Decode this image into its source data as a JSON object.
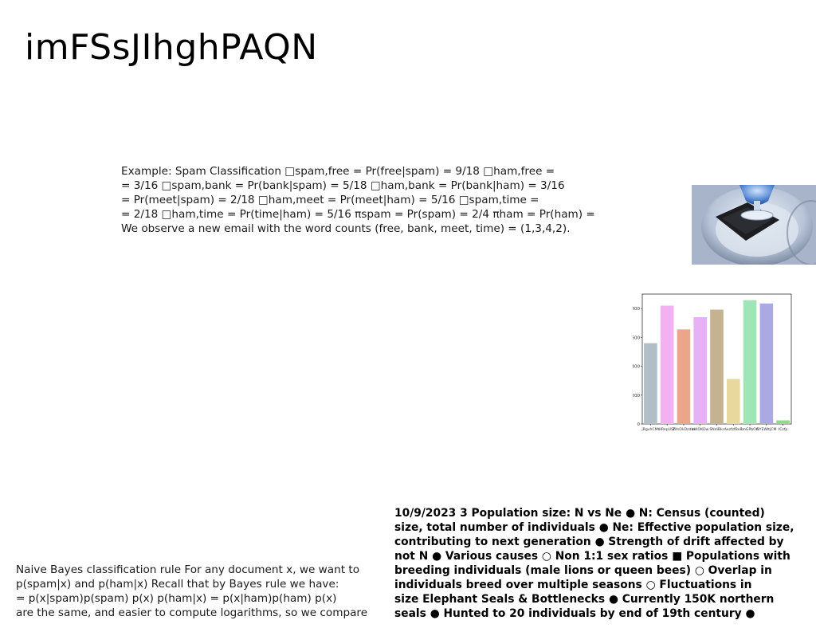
{
  "page": {
    "title": "imFSsJIhghPAQN"
  },
  "spam_example": {
    "lines": [
      "Example: Spam Classification □spam,free = Pr(free|spam) = 9/18 □ham,free =",
      "= 3/16 □spam,bank = Pr(bank|spam) = 5/18 □ham,bank = Pr(bank|ham) = 3/16",
      "= Pr(meet|spam) = 2/18 □ham,meet = Pr(meet|ham) = 5/16 □spam,time =",
      "= 2/18 □ham,time = Pr(time|ham) = 5/16 πspam = Pr(spam) = 2/4 πham = Pr(ham) =",
      "We observe a new email with the word counts (free, bank, meet, time) = (1,3,4,2)."
    ]
  },
  "bayes_rule": {
    "lines": [
      "Naive Bayes classification rule For any document x, we want to",
      "p(spam|x) and p(ham|x) Recall that by Bayes rule we have:",
      "= p(x|spam)p(spam) p(x) p(ham|x) = p(x|ham)p(ham) p(x)",
      "are the same, and easier to compute logarithms, so we compare"
    ]
  },
  "population": {
    "lines": [
      "10/9/2023 3 Population size: N vs Ne ● N: Census (counted)",
      "size, total number of individuals ● Ne: Effective population size,",
      "contributing to next generation ● Strength of drift affected by",
      "not N ● Various causes ○ Non 1:1 sex ratios ■ Populations with",
      "breeding individuals (male lions or queen bees) ○ Overlap in",
      "individuals breed over multiple seasons ○ Fluctuations in",
      "size Elephant Seals & Bottlenecks ● Currently 150K northern",
      "seals ● Hunted to 20 individuals by end of 19th century ●"
    ]
  },
  "photo": {
    "icon": "glass-on-coaster-photo"
  },
  "chart_data": {
    "type": "bar",
    "categories": [
      "jRgvhCMt",
      "HRepUSh",
      "ZYsOkDzdm",
      "bWOKDw",
      "SNdiBkr",
      "AezfzfBeR",
      "ImGPbOC",
      "NYEWltjCM",
      "ICzfp"
    ],
    "values": [
      560,
      820,
      655,
      740,
      792,
      312,
      858,
      835,
      25
    ],
    "colors": [
      "#b2bec6",
      "#f2b1f0",
      "#eba58a",
      "#e6b1f5",
      "#c5b28f",
      "#e9d89d",
      "#9fe5b8",
      "#aaa9e3",
      "#90d98a"
    ],
    "yticks": [
      0,
      200,
      400,
      600,
      800
    ],
    "ylim": [
      0,
      900
    ],
    "title": "",
    "xlabel": "",
    "ylabel": "",
    "grid": false
  }
}
